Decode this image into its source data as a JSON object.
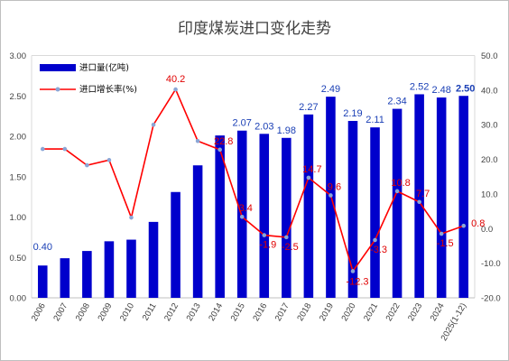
{
  "chart_data": {
    "type": "bar",
    "title": "印度煤炭进口变化走势",
    "categories": [
      "2006",
      "2007",
      "2008",
      "2009",
      "2010",
      "2011",
      "2012",
      "2013",
      "2014",
      "2015",
      "2016",
      "2017",
      "2018",
      "2019",
      "2020",
      "2021",
      "2022",
      "2023",
      "2024",
      "2025(1-12)"
    ],
    "ylim_left": [
      0,
      3
    ],
    "yticks_left": [
      "0.00",
      "0.50",
      "1.00",
      "1.50",
      "2.00",
      "2.50",
      "3.00"
    ],
    "ylim_right": [
      -20,
      50
    ],
    "yticks_right": [
      "-20.0",
      "-10.0",
      "0.0",
      "10.0",
      "20.0",
      "30.0",
      "40.0",
      "50.0"
    ],
    "legend_position": "top-left",
    "series": [
      {
        "name": "进口量(亿吨)",
        "type": "bar",
        "axis": "left",
        "color": "#0000cc",
        "values": [
          0.4,
          0.49,
          0.58,
          0.7,
          0.72,
          0.94,
          1.31,
          1.64,
          2.01,
          2.07,
          2.03,
          1.98,
          2.27,
          2.49,
          2.19,
          2.11,
          2.34,
          2.52,
          2.48,
          2.5
        ],
        "labels": [
          "0.40",
          "",
          "",
          "",
          "",
          "",
          "",
          "",
          "",
          "2.07",
          "2.03",
          "1.98",
          "2.27",
          "2.49",
          "2.19",
          "2.11",
          "2.34",
          "2.52",
          "2.48",
          "2.50"
        ]
      },
      {
        "name": "进口增长率(%)",
        "type": "line",
        "axis": "right",
        "color": "#ff0000",
        "marker_color": "#8aa6d6",
        "values": [
          23.0,
          23.0,
          18.3,
          19.8,
          3.2,
          30.0,
          40.2,
          25.3,
          22.8,
          3.4,
          -1.9,
          -2.5,
          14.7,
          9.6,
          -12.3,
          -3.3,
          10.8,
          7.7,
          -1.5,
          0.8
        ],
        "labels": [
          "",
          "",
          "",
          "",
          "",
          "",
          "40.2",
          "",
          "22.8",
          "3.4",
          "-1.9",
          "-2.5",
          "14.7",
          "9.6",
          "-12.3",
          "-3.3",
          "10.8",
          "7.7",
          "-1.5",
          "0.8"
        ]
      }
    ]
  }
}
